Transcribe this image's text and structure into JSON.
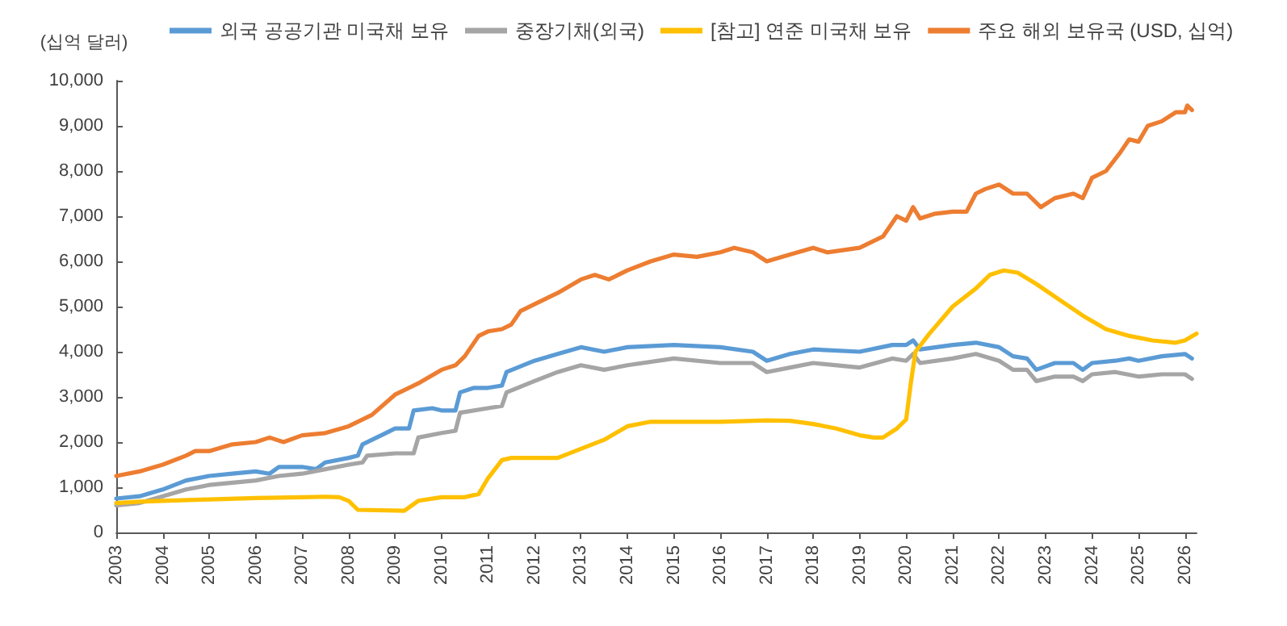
{
  "chart_data": {
    "type": "line",
    "ylabel": "(십억 달러)",
    "legend": "top",
    "grid": false,
    "marker": "none",
    "line_style": "solid",
    "xlim": [
      2003,
      2026.25
    ],
    "xticks": [
      2003,
      2004,
      2005,
      2006,
      2007,
      2008,
      2009,
      2010,
      2011,
      2012,
      2013,
      2014,
      2015,
      2016,
      2017,
      2018,
      2019,
      2020,
      2021,
      2022,
      2023,
      2024,
      2025,
      2026
    ],
    "ylim": [
      0,
      10000
    ],
    "yticks": [
      0,
      {
        "value": 1000,
        "label": "1,000"
      },
      {
        "value": 2000,
        "label": "2,000"
      },
      {
        "value": 3000,
        "label": "3,000"
      },
      {
        "value": 4000,
        "label": "4,000"
      },
      {
        "value": 5000,
        "label": "5,000"
      },
      {
        "value": 6000,
        "label": "6,000"
      },
      {
        "value": 7000,
        "label": "7,000"
      },
      {
        "value": 8000,
        "label": "8,000"
      },
      {
        "value": 9000,
        "label": "9,000"
      },
      {
        "value": 10000,
        "label": "10,000"
      }
    ],
    "series": [
      {
        "name": "외국 공공기관 미국채 보유",
        "color": "#5b9bd5",
        "x": [
          2003,
          2003.5,
          2004,
          2004.5,
          2005,
          2005.5,
          2006,
          2006.3,
          2006.5,
          2007,
          2007.3,
          2007.5,
          2008,
          2008.2,
          2008.3,
          2008.8,
          2009,
          2009.3,
          2009.4,
          2009.8,
          2010,
          2010.3,
          2010.4,
          2010.7,
          2011,
          2011.3,
          2011.4,
          2012,
          2012.5,
          2013,
          2013.5,
          2014,
          2015,
          2016,
          2016.7,
          2017,
          2017.5,
          2018,
          2019,
          2019.7,
          2020,
          2020.15,
          2020.3,
          2021,
          2021.5,
          2022,
          2022.3,
          2022.6,
          2022.8,
          2023.2,
          2023.6,
          2023.8,
          2024,
          2024.5,
          2024.8,
          2025,
          2025.5,
          2026,
          2026.15
        ],
        "values": [
          750,
          800,
          950,
          1150,
          1250,
          1300,
          1350,
          1300,
          1450,
          1450,
          1400,
          1550,
          1650,
          1700,
          1950,
          2200,
          2300,
          2300,
          2700,
          2750,
          2700,
          2700,
          3100,
          3200,
          3200,
          3250,
          3550,
          3800,
          3950,
          4100,
          4000,
          4100,
          4150,
          4100,
          4000,
          3800,
          3950,
          4050,
          4000,
          4150,
          4150,
          4250,
          4050,
          4150,
          4200,
          4100,
          3900,
          3850,
          3600,
          3750,
          3750,
          3600,
          3750,
          3800,
          3850,
          3800,
          3900,
          3950,
          3850
        ]
      },
      {
        "name": "중장기채(외국)",
        "color": "#a5a5a5",
        "x": [
          2003,
          2003.5,
          2004,
          2004.5,
          2005,
          2005.5,
          2006,
          2006.5,
          2007,
          2007.5,
          2008,
          2008.3,
          2008.4,
          2009,
          2009.4,
          2009.5,
          2010,
          2010.3,
          2010.4,
          2011,
          2011.3,
          2011.4,
          2012,
          2012.5,
          2013,
          2013.5,
          2014,
          2015,
          2016,
          2016.7,
          2017,
          2017.5,
          2018,
          2019,
          2019.7,
          2020,
          2020.15,
          2020.3,
          2021,
          2021.5,
          2022,
          2022.3,
          2022.6,
          2022.8,
          2023.2,
          2023.6,
          2023.8,
          2024,
          2024.5,
          2025,
          2025.5,
          2026,
          2026.15
        ],
        "values": [
          600,
          650,
          800,
          950,
          1050,
          1100,
          1150,
          1250,
          1300,
          1400,
          1500,
          1550,
          1700,
          1750,
          1750,
          2100,
          2200,
          2250,
          2650,
          2750,
          2800,
          3100,
          3350,
          3550,
          3700,
          3600,
          3700,
          3850,
          3750,
          3750,
          3550,
          3650,
          3750,
          3650,
          3850,
          3800,
          3950,
          3750,
          3850,
          3950,
          3800,
          3600,
          3600,
          3350,
          3450,
          3450,
          3350,
          3500,
          3550,
          3450,
          3500,
          3500,
          3400
        ]
      },
      {
        "name": "[참고] 연준 미국채 보유",
        "color": "#ffc000",
        "x": [
          2003,
          2003.5,
          2004,
          2005,
          2006,
          2007,
          2007.5,
          2007.8,
          2008,
          2008.2,
          2009.2,
          2009.5,
          2010,
          2010.5,
          2010.8,
          2011,
          2011.3,
          2011.5,
          2012.5,
          2013,
          2013.5,
          2014,
          2014.5,
          2015,
          2016,
          2017,
          2017.5,
          2018,
          2018.5,
          2019,
          2019.3,
          2019.5,
          2019.8,
          2020,
          2020.1,
          2020.2,
          2020.5,
          2021,
          2021.5,
          2021.8,
          2022.1,
          2022.4,
          2022.8,
          2023.3,
          2023.8,
          2024.3,
          2024.8,
          2025.3,
          2025.8,
          2026,
          2026.25
        ],
        "values": [
          650,
          680,
          700,
          730,
          760,
          780,
          790,
          780,
          700,
          500,
          480,
          700,
          780,
          780,
          850,
          1200,
          1600,
          1650,
          1650,
          1850,
          2050,
          2350,
          2450,
          2450,
          2450,
          2480,
          2470,
          2400,
          2300,
          2150,
          2100,
          2100,
          2300,
          2500,
          3300,
          4000,
          4400,
          5000,
          5400,
          5700,
          5800,
          5750,
          5500,
          5150,
          4800,
          4500,
          4350,
          4250,
          4200,
          4250,
          4400
        ]
      },
      {
        "name": "주요 해외 보유국 (USD, 십억)",
        "color": "#ed7d31",
        "x": [
          2003,
          2003.5,
          2004,
          2004.5,
          2004.7,
          2005,
          2005.5,
          2006,
          2006.3,
          2006.6,
          2007,
          2007.5,
          2008,
          2008.5,
          2009,
          2009.5,
          2010,
          2010.3,
          2010.5,
          2010.8,
          2011,
          2011.3,
          2011.5,
          2011.7,
          2012,
          2012.5,
          2013,
          2013.3,
          2013.6,
          2014,
          2014.5,
          2015,
          2015.5,
          2016,
          2016.3,
          2016.7,
          2017,
          2017.5,
          2018,
          2018.3,
          2019,
          2019.5,
          2019.8,
          2020,
          2020.15,
          2020.3,
          2020.6,
          2021,
          2021.3,
          2021.5,
          2021.7,
          2022,
          2022.3,
          2022.6,
          2022.9,
          2023.2,
          2023.6,
          2023.8,
          2024,
          2024.3,
          2024.6,
          2024.8,
          2025,
          2025.2,
          2025.5,
          2025.8,
          2026,
          2026.05,
          2026.15
        ],
        "values": [
          1250,
          1350,
          1500,
          1700,
          1800,
          1800,
          1950,
          2000,
          2100,
          2000,
          2150,
          2200,
          2350,
          2600,
          3050,
          3300,
          3600,
          3700,
          3900,
          4350,
          4450,
          4500,
          4600,
          4900,
          5050,
          5300,
          5600,
          5700,
          5600,
          5800,
          6000,
          6150,
          6100,
          6200,
          6300,
          6200,
          6000,
          6150,
          6300,
          6200,
          6300,
          6550,
          7000,
          6900,
          7200,
          6950,
          7050,
          7100,
          7100,
          7500,
          7600,
          7700,
          7500,
          7500,
          7200,
          7400,
          7500,
          7400,
          7850,
          8000,
          8400,
          8700,
          8650,
          9000,
          9100,
          9300,
          9300,
          9450,
          9350
        ]
      }
    ]
  }
}
